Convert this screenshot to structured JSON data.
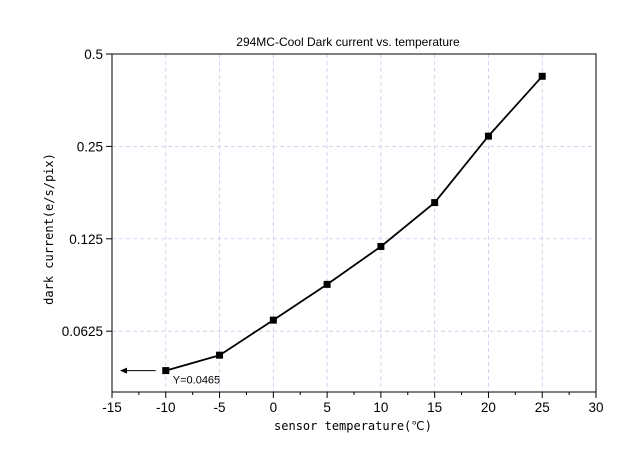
{
  "chart_data": {
    "type": "line",
    "title": "294MC-Cool Dark current vs. temperature",
    "xlabel": "sensor temperature(℃)",
    "ylabel": "dark current(e/s/pix)",
    "xlim": [
      -15,
      30
    ],
    "ylim": [
      0.0396,
      0.5
    ],
    "yscale": "log2",
    "xticks": [
      -15,
      -10,
      -5,
      0,
      5,
      10,
      15,
      20,
      25,
      30
    ],
    "xtick_labels": [
      "-15",
      "-10",
      "-5",
      "0",
      "5",
      "10",
      "15",
      "20",
      "25",
      "30"
    ],
    "yticks": [
      0.0625,
      0.125,
      0.25,
      0.5
    ],
    "ytick_labels": [
      "0.0625",
      "0.125",
      "0.25",
      "0.5"
    ],
    "grid": true,
    "grid_color": "#c9c9ef",
    "line_color": "#000000",
    "marker": "square",
    "series": [
      {
        "x": [
          -10,
          -5,
          0,
          5,
          10,
          15,
          20,
          25
        ],
        "y": [
          0.0465,
          0.0522,
          0.0679,
          0.0888,
          0.118,
          0.164,
          0.27,
          0.423
        ]
      }
    ],
    "annotations": [
      {
        "text": "Y=0.0465",
        "x": -10,
        "y": 0.0465,
        "arrow": "left"
      }
    ]
  }
}
